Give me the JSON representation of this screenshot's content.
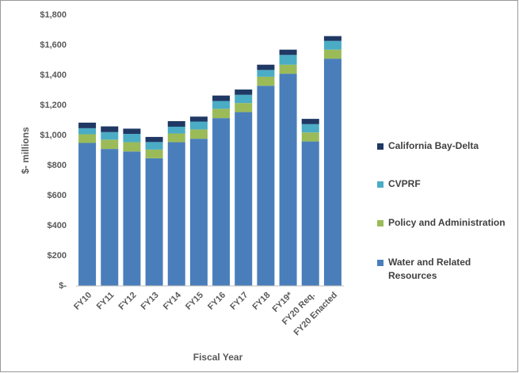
{
  "chart_data": {
    "type": "stacked_bar",
    "categories": [
      "FY10",
      "FY11",
      "FY12",
      "FY13",
      "FY14",
      "FY15",
      "FY16",
      "FY17",
      "FY18",
      "FY19*",
      "FY20 Req.",
      "FY20 Enacted"
    ],
    "series": [
      {
        "name": "Water and Related Resources",
        "color": "#4a7ebb",
        "values": [
          950,
          910,
          893,
          848,
          955,
          978,
          1115,
          1155,
          1330,
          1410,
          960,
          1510
        ]
      },
      {
        "name": "Policy and Administration",
        "color": "#9bbb59",
        "values": [
          58,
          62,
          62,
          58,
          58,
          62,
          62,
          60,
          60,
          60,
          60,
          60
        ]
      },
      {
        "name": "CVPRF",
        "color": "#4bacc6",
        "values": [
          40,
          50,
          55,
          50,
          45,
          52,
          52,
          55,
          45,
          65,
          55,
          58
        ]
      },
      {
        "name": "California Bay-Delta",
        "color": "#1f3864",
        "values": [
          37,
          38,
          35,
          34,
          37,
          33,
          36,
          35,
          35,
          35,
          35,
          32
        ]
      }
    ],
    "x_label": "Fiscal Year",
    "y_label": "$- millions",
    "ylim": [
      0,
      1800
    ],
    "yticks": [
      {
        "value": 0,
        "label": "$-"
      },
      {
        "value": 200,
        "label": "$200"
      },
      {
        "value": 400,
        "label": "$400"
      },
      {
        "value": 600,
        "label": "$600"
      },
      {
        "value": 800,
        "label": "$800"
      },
      {
        "value": 1000,
        "label": "$1,000"
      },
      {
        "value": 1200,
        "label": "$1,200"
      },
      {
        "value": 1400,
        "label": "$1,400"
      },
      {
        "value": 1600,
        "label": "$1,600"
      },
      {
        "value": 1800,
        "label": "$1,800"
      }
    ],
    "grid": false,
    "legend": "right"
  }
}
